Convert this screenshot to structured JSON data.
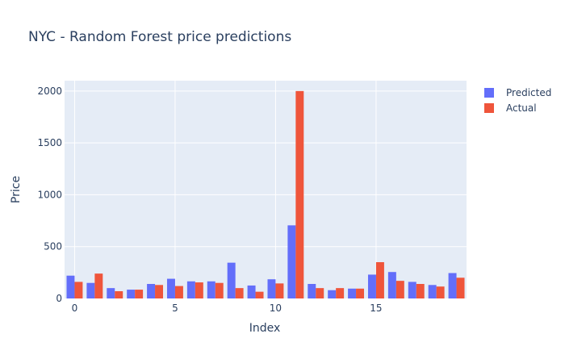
{
  "chart_data": {
    "type": "bar",
    "title": "NYC - Random Forest price predictions",
    "xlabel": "Index",
    "ylabel": "Price",
    "x": [
      0,
      1,
      2,
      3,
      4,
      5,
      6,
      7,
      8,
      9,
      10,
      11,
      12,
      13,
      14,
      15,
      16,
      17,
      18,
      19
    ],
    "xticks": [
      0,
      5,
      10,
      15
    ],
    "yticks": [
      0,
      500,
      1000,
      1500,
      2000
    ],
    "xlim": [
      -0.5,
      19.5
    ],
    "ylim": [
      0,
      2100
    ],
    "grid": true,
    "legend_position": "top-right",
    "series": [
      {
        "name": "Predicted",
        "color": "#636efa",
        "values": [
          220,
          150,
          100,
          85,
          140,
          190,
          165,
          165,
          345,
          125,
          185,
          705,
          140,
          80,
          95,
          230,
          255,
          160,
          130,
          245
        ]
      },
      {
        "name": "Actual",
        "color": "#ef553b",
        "values": [
          160,
          240,
          70,
          85,
          130,
          120,
          155,
          150,
          100,
          65,
          145,
          2000,
          100,
          100,
          95,
          350,
          170,
          140,
          115,
          200
        ]
      }
    ]
  }
}
